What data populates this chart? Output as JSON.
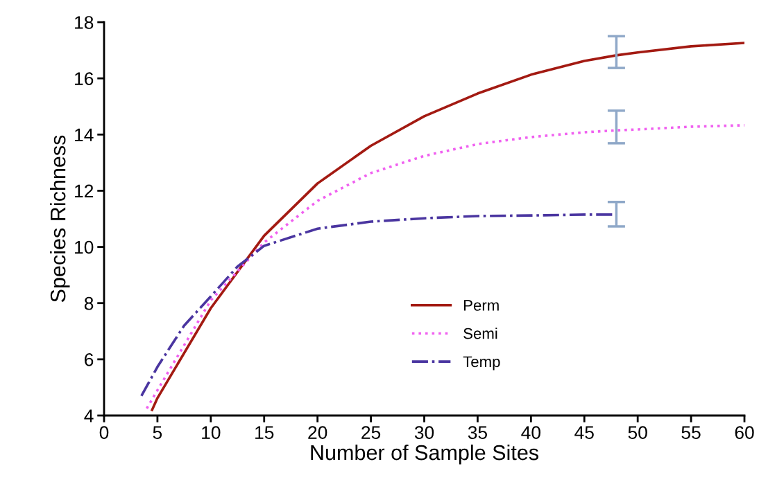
{
  "chart_data": {
    "type": "line",
    "xlabel": "Number of Sample Sites",
    "ylabel": "Species Richness",
    "xlim": [
      0,
      60
    ],
    "xticks": [
      0,
      5,
      10,
      15,
      20,
      25,
      30,
      35,
      40,
      45,
      50,
      55,
      60
    ],
    "ylim": [
      4,
      18
    ],
    "yticks": [
      4,
      6,
      8,
      10,
      12,
      14,
      16,
      18
    ],
    "grid": false,
    "legend": "bottom",
    "marker": "none",
    "series": [
      {
        "name": "Perm",
        "color": "#a31a12",
        "line_style": "solid",
        "x": [
          4.5,
          5,
          10,
          15,
          20,
          25,
          30,
          35,
          40,
          45,
          48,
          50,
          55,
          60
        ],
        "values": [
          4.2,
          4.62,
          7.82,
          10.4,
          12.26,
          13.6,
          14.65,
          15.46,
          16.13,
          16.62,
          16.82,
          16.92,
          17.14,
          17.26
        ],
        "errors": [
          null,
          null,
          null,
          null,
          null,
          null,
          null,
          null,
          null,
          null,
          [
            16.37,
            17.5
          ],
          null,
          null,
          null
        ]
      },
      {
        "name": "Semi",
        "color": "#f060f0",
        "line_style": "dotted",
        "x": [
          4,
          5,
          10,
          15,
          20,
          25,
          30,
          35,
          40,
          45,
          48,
          50,
          55,
          60
        ],
        "values": [
          4.25,
          4.9,
          8.1,
          10.16,
          11.64,
          12.63,
          13.24,
          13.66,
          13.91,
          14.08,
          14.15,
          14.18,
          14.28,
          14.33
        ],
        "errors": [
          null,
          null,
          null,
          null,
          null,
          null,
          null,
          null,
          null,
          null,
          [
            13.69,
            14.85
          ],
          null,
          null,
          null
        ]
      },
      {
        "name": "Temp",
        "color": "#4a35a0",
        "line_style": "dashdot",
        "x": [
          3.5,
          5,
          7.5,
          10,
          12.5,
          15,
          20,
          25,
          30,
          35,
          40,
          45,
          48
        ],
        "values": [
          4.7,
          5.73,
          7.2,
          8.24,
          9.3,
          10.04,
          10.65,
          10.9,
          11.02,
          11.1,
          11.12,
          11.15,
          11.15
        ],
        "errors": [
          null,
          null,
          null,
          null,
          null,
          null,
          null,
          null,
          null,
          null,
          null,
          null,
          [
            10.73,
            11.6
          ]
        ]
      }
    ]
  }
}
